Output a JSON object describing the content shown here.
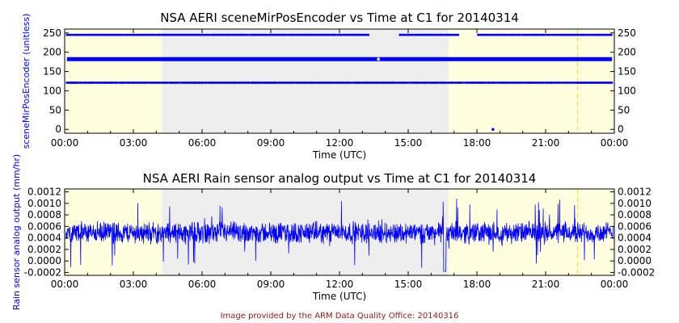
{
  "colors": {
    "series": "#0000ff",
    "day_shade": "#ffffe0",
    "night_shade": "#eeeeee",
    "marker_line": "#ffd700",
    "footer": "#8b1a1a"
  },
  "footer": "Image provided by the ARM Data Quality Office: 20140316",
  "chart_data": [
    {
      "type": "scatter",
      "title": "NSA AERI sceneMirPosEncoder vs Time at C1 for 20140314",
      "xlabel": "Time (UTC)",
      "ylabel": "sceneMirPosEncoder (unitless)",
      "x_ticks": [
        "00:00",
        "03:00",
        "06:00",
        "09:00",
        "12:00",
        "15:00",
        "18:00",
        "21:00",
        "00:00"
      ],
      "xlim_hours": [
        0,
        24
      ],
      "ylim": [
        -10,
        260
      ],
      "y_ticks": [
        0,
        50,
        100,
        150,
        200,
        250
      ],
      "y_tick_labels": [
        "0",
        "50",
        "100",
        "150",
        "200",
        "250"
      ],
      "shading_hours": {
        "night_start": 4.25,
        "night_end": 16.75
      },
      "marker_line_hour": 22.4,
      "series": [
        {
          "values_level": 245,
          "x_hours_start": 0.1,
          "x_hours_end": 23.9
        },
        {
          "values_level": 182,
          "x_hours_start": 0.1,
          "x_hours_end": 23.9
        },
        {
          "values_level": 121,
          "x_hours_start": 0.1,
          "x_hours_end": 23.9
        }
      ],
      "outliers": [
        {
          "x_hours": 18.7,
          "y": 0
        },
        {
          "x_hours": 13.7,
          "y": 182
        }
      ]
    },
    {
      "type": "line",
      "title": "NSA AERI Rain sensor analog output vs Time at C1 for 20140314",
      "xlabel": "Time (UTC)",
      "ylabel": "Rain sensor analog output (mm/hr)",
      "x_ticks": [
        "00:00",
        "03:00",
        "06:00",
        "09:00",
        "12:00",
        "15:00",
        "18:00",
        "21:00",
        "00:00"
      ],
      "xlim_hours": [
        0,
        24
      ],
      "ylim": [
        -0.00025,
        0.00125
      ],
      "y_ticks": [
        -0.0002,
        0.0,
        0.0002,
        0.0004,
        0.0006,
        0.0008,
        0.001,
        0.0012
      ],
      "y_tick_labels_left": [
        "-0.0002",
        "0.0000",
        "0.0002",
        "0.0004",
        "0.0006",
        "0.0008",
        "0.0010",
        "0.0012"
      ],
      "y_tick_labels_right": [
        "-0.0002",
        "0.0000",
        "0.0002",
        "0.0004",
        "0.0006",
        "0.0008",
        "0.0010",
        "0.0012"
      ],
      "shading_hours": {
        "night_start": 4.25,
        "night_end": 16.75
      },
      "marker_line_hour": 22.4,
      "signal": {
        "mean": 0.00049,
        "spread": 0.00022,
        "min": -0.0002,
        "max": 0.0011
      }
    }
  ]
}
